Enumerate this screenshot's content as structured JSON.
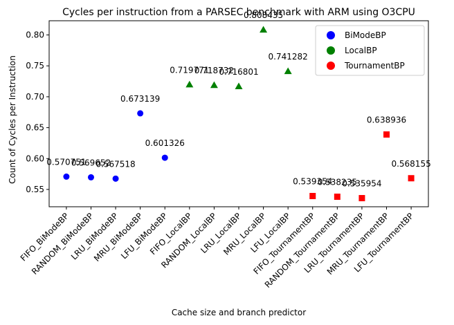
{
  "chart_data": {
    "type": "scatter",
    "title": "Cycles per instruction from a PARSEC benchmark with ARM using O3CPU",
    "xlabel": "Cache size and branch predictor",
    "ylabel": "Count of Cycles per Instruction",
    "categories": [
      "FIFO_BiModeBP",
      "RANDOM_BiModeBP",
      "LRU_BiModeBP",
      "MRU_BiModeBP",
      "LFU_BiModeBP",
      "FIFO_LocalBP",
      "RANDOM_LocalBP",
      "LRU_LocalBP",
      "MRU_LocalBP",
      "LFU_LocalBP",
      "FIFO_TournamentBP",
      "RANDOM_TournamentBP",
      "LRU_TournamentBP",
      "MRU_TournamentBP",
      "LFU_TournamentBP"
    ],
    "ylim": [
      0.522,
      0.823
    ],
    "yticks": [
      0.55,
      0.6,
      0.65,
      0.7,
      0.75,
      0.8
    ],
    "ytick_labels": [
      "0.55",
      "0.60",
      "0.65",
      "0.70",
      "0.75",
      "0.80"
    ],
    "legend_position": "top-right",
    "grid": false,
    "series": [
      {
        "name": "BiModeBP",
        "color": "#0000ff",
        "marker": "circle",
        "x": [
          0,
          1,
          2,
          3,
          4
        ],
        "values": [
          0.570751,
          0.569652,
          0.567518,
          0.673139,
          0.601326
        ],
        "labels": [
          "0.570751",
          "0.569652",
          "0.567518",
          "0.673139",
          "0.601326"
        ]
      },
      {
        "name": "LocalBP",
        "color": "#008000",
        "marker": "triangle",
        "x": [
          5,
          6,
          7,
          8,
          9
        ],
        "values": [
          0.719771,
          0.718732,
          0.716801,
          0.808435,
          0.741282
        ],
        "labels": [
          "0.719771",
          "0.718732",
          "0.716801",
          "0.808435",
          "0.741282"
        ]
      },
      {
        "name": "TournamentBP",
        "color": "#ff0000",
        "marker": "square",
        "x": [
          10,
          11,
          12,
          13,
          14
        ],
        "values": [
          0.539354,
          0.538235,
          0.535954,
          0.638936,
          0.568155
        ],
        "labels": [
          "0.539354",
          "0.538235",
          "0.535954",
          "0.638936",
          "0.568155"
        ]
      }
    ]
  }
}
